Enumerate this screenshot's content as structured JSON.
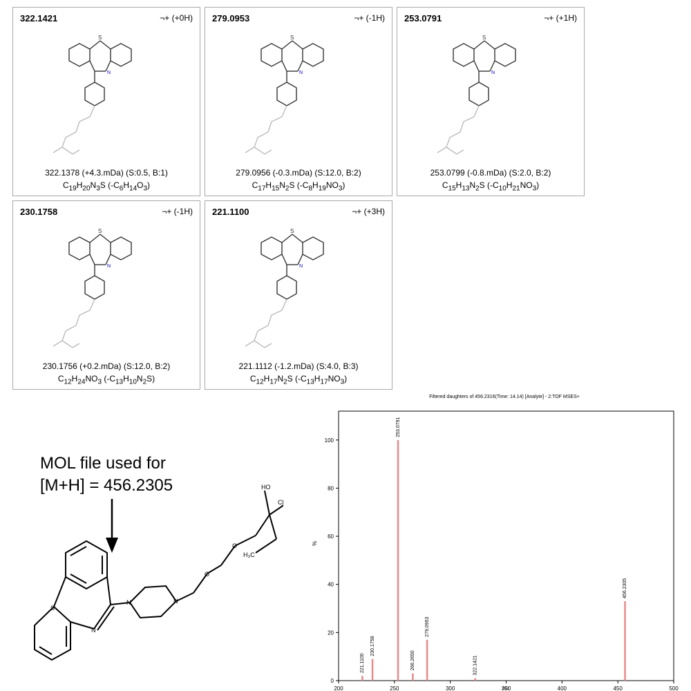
{
  "fragments": [
    {
      "mass": "322.1421",
      "charge": "¬+ (+0H)",
      "line1": "322.1378 (+4.3.mDa) (S:0.5, B:1)",
      "f1_base": "C",
      "f1_parts": [
        [
          "C",
          "19"
        ],
        [
          "H",
          "20"
        ],
        [
          "N",
          "3"
        ],
        [
          "S",
          ""
        ]
      ],
      "f1_loss": [
        [
          "C",
          "6"
        ],
        [
          "H",
          "14"
        ],
        [
          "O",
          "3"
        ]
      ]
    },
    {
      "mass": "279.0953",
      "charge": "¬+ (-1H)",
      "line1": "279.0956 (-0.3.mDa) (S:12.0, B:2)",
      "f1_parts": [
        [
          "C",
          "17"
        ],
        [
          "H",
          "15"
        ],
        [
          "N",
          "2"
        ],
        [
          "S",
          ""
        ]
      ],
      "f1_loss": [
        [
          "C",
          "8"
        ],
        [
          "H",
          "19"
        ],
        [
          "N",
          ""
        ],
        [
          "O",
          "3"
        ]
      ]
    },
    {
      "mass": "253.0791",
      "charge": "¬+ (+1H)",
      "line1": "253.0799 (-0.8.mDa) (S:2.0, B:2)",
      "f1_parts": [
        [
          "C",
          "15"
        ],
        [
          "H",
          "13"
        ],
        [
          "N",
          "2"
        ],
        [
          "S",
          ""
        ]
      ],
      "f1_loss": [
        [
          "C",
          "10"
        ],
        [
          "H",
          "21"
        ],
        [
          "N",
          ""
        ],
        [
          "O",
          "3"
        ]
      ]
    },
    {
      "mass": "230.1758",
      "charge": "¬+ (-1H)",
      "line1": "230.1756 (+0.2.mDa) (S:12.0, B:2)",
      "f1_parts": [
        [
          "C",
          "12"
        ],
        [
          "H",
          "24"
        ],
        [
          "N",
          ""
        ],
        [
          "O",
          "3"
        ]
      ],
      "f1_loss": [
        [
          "C",
          "13"
        ],
        [
          "H",
          "10"
        ],
        [
          "N",
          "2"
        ],
        [
          "S",
          ""
        ]
      ]
    },
    {
      "mass": "221.1100",
      "charge": "¬+ (+3H)",
      "line1": "221.1112 (-1.2.mDa) (S:4.0, B:3)",
      "f1_parts": [
        [
          "C",
          "12"
        ],
        [
          "H",
          "17"
        ],
        [
          "N",
          "2"
        ],
        [
          "S",
          ""
        ]
      ],
      "f1_loss": [
        [
          "C",
          "13"
        ],
        [
          "H",
          "17"
        ],
        [
          "N",
          ""
        ],
        [
          "O",
          "3"
        ]
      ]
    }
  ],
  "caption": {
    "line1": "MOL file used for",
    "line2": "[M+H] = 456.2305"
  },
  "chart_data": {
    "type": "bar",
    "title": "Filtered daughters of 456.2316(Time: 14.14)   [Analyte]   -   2:TOF MSES+",
    "xlabel": "m/z",
    "ylabel": "%",
    "xlim": [
      200,
      500
    ],
    "ylim": [
      0,
      112
    ],
    "xticks": [
      200,
      250,
      300,
      350,
      400,
      450,
      500
    ],
    "yticks": [
      0,
      20,
      40,
      60,
      80,
      100
    ],
    "grid": false,
    "bar_color": "#e88a8a",
    "peaks": [
      {
        "x": 221.11,
        "y": 2,
        "label": "221.1100"
      },
      {
        "x": 230.1758,
        "y": 9,
        "label": "230.1758"
      },
      {
        "x": 253.0791,
        "y": 100,
        "label": "253.0791"
      },
      {
        "x": 266.265,
        "y": 3,
        "label": "266.2650"
      },
      {
        "x": 279.0953,
        "y": 17,
        "label": "279.0953"
      },
      {
        "x": 322.1421,
        "y": 1,
        "label": "322.1421"
      },
      {
        "x": 456.2305,
        "y": 33,
        "label": "456.2305"
      }
    ]
  }
}
